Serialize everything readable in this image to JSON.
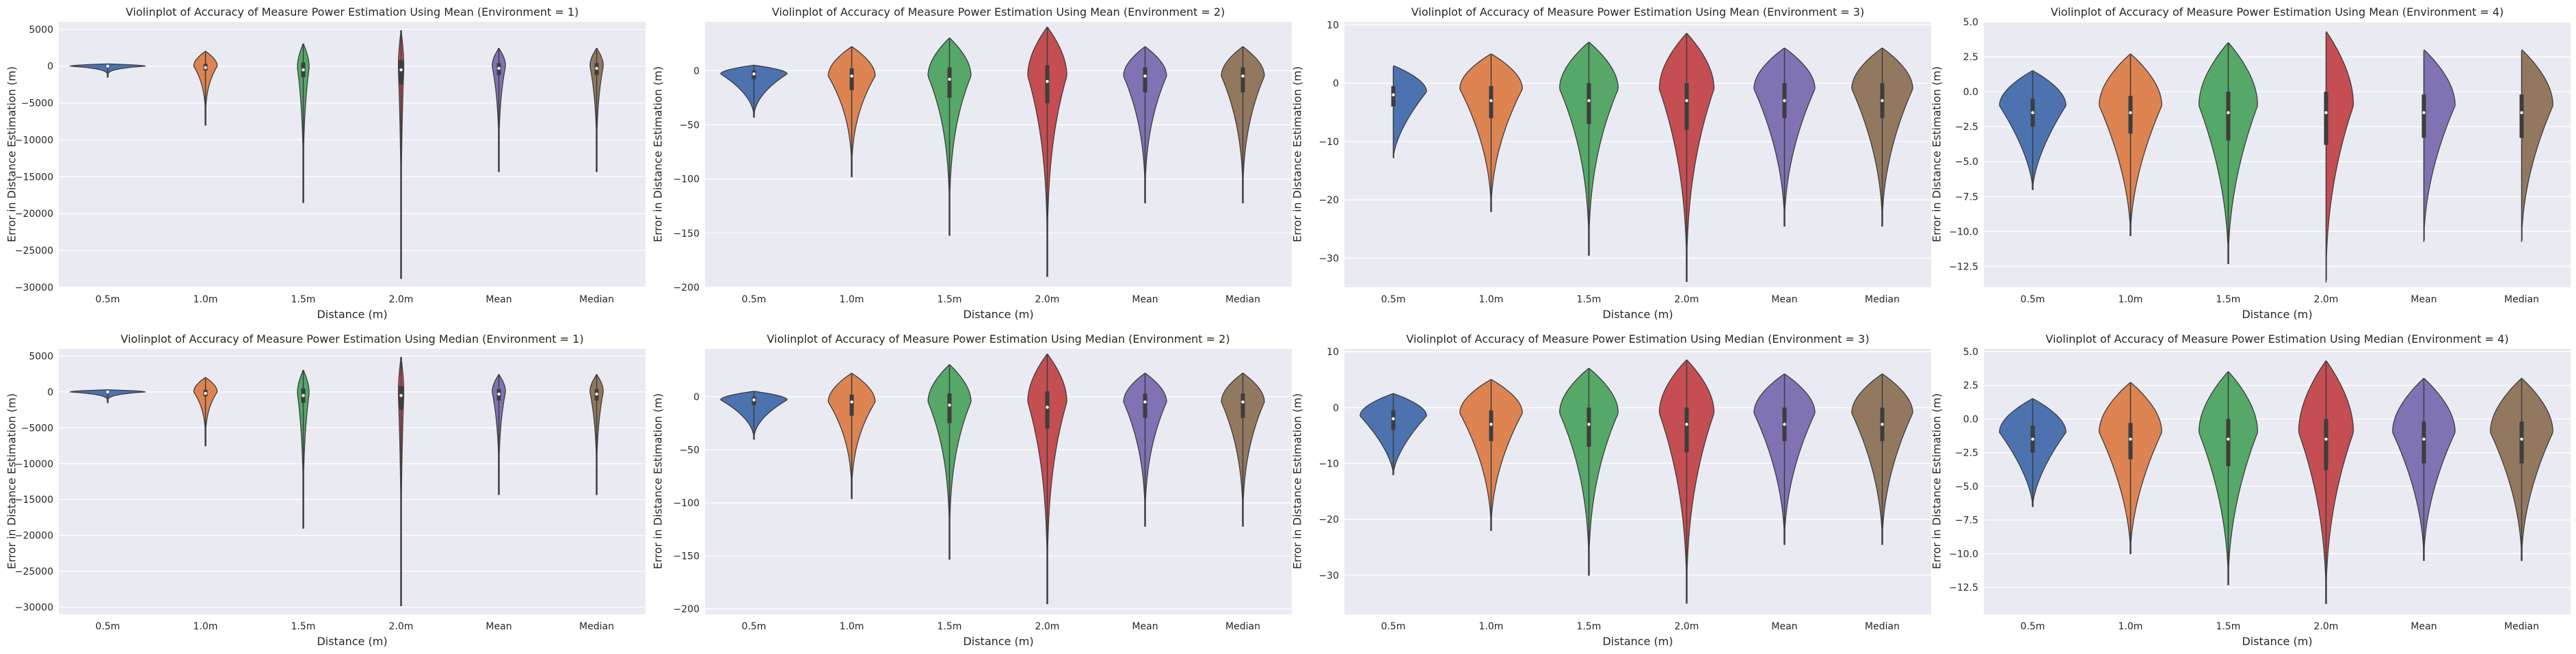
{
  "chart_data": [
    {
      "type": "violin",
      "title": "Violinplot of Accuracy of Measure Power Estimation Using Mean (Environment = 1)",
      "xlabel": "Distance (m)",
      "ylabel": "Error in Distance Estimation (m)",
      "categories": [
        "0.5m",
        "1.0m",
        "1.5m",
        "2.0m",
        "Mean",
        "Median"
      ],
      "ylim": [
        -30000,
        6000
      ],
      "yticks": [
        5000,
        0,
        -5000,
        -10000,
        -15000,
        -20000,
        -25000,
        -30000
      ],
      "ytick_labels": [
        "5000",
        "0",
        "−5000",
        "−10000",
        "−15000",
        "−20000",
        "−25000",
        "−30000"
      ],
      "colors": [
        "#4c72b0",
        "#dd8452",
        "#55a868",
        "#c44e52",
        "#8172b3",
        "#937860"
      ],
      "violins": [
        {
          "min": -1500,
          "max": 300,
          "median": 0,
          "q1": -150,
          "q3": 100,
          "center": 0,
          "width": 0.95,
          "tail": 4
        },
        {
          "min": -8000,
          "max": 2000,
          "median": -200,
          "q1": -600,
          "q3": 300,
          "center": 0,
          "width": 0.3,
          "tail": 3
        },
        {
          "min": -18500,
          "max": 3000,
          "median": -500,
          "q1": -1500,
          "q3": 500,
          "center": -200,
          "width": 0.15,
          "tail": 3
        },
        {
          "min": -28800,
          "max": 4800,
          "median": -500,
          "q1": -2500,
          "q3": 800,
          "center": -300,
          "width": 0.07,
          "tail": 3
        },
        {
          "min": -14300,
          "max": 2400,
          "median": -300,
          "q1": -1200,
          "q3": 400,
          "center": 0,
          "width": 0.17,
          "tail": 3
        },
        {
          "min": -14300,
          "max": 2400,
          "median": -300,
          "q1": -1200,
          "q3": 400,
          "center": 0,
          "width": 0.17,
          "tail": 3
        }
      ]
    },
    {
      "type": "violin",
      "title": "Violinplot of Accuracy of Measure Power Estimation Using Mean (Environment = 2)",
      "xlabel": "Distance (m)",
      "ylabel": "Error in Distance Estimation (m)",
      "categories": [
        "0.5m",
        "1.0m",
        "1.5m",
        "2.0m",
        "Mean",
        "Median"
      ],
      "ylim": [
        -200,
        45
      ],
      "yticks": [
        0,
        -50,
        -100,
        -150,
        -200
      ],
      "ytick_labels": [
        "0",
        "−50",
        "−100",
        "−150",
        "−200"
      ],
      "colors": [
        "#4c72b0",
        "#dd8452",
        "#55a868",
        "#c44e52",
        "#8172b3",
        "#937860"
      ],
      "violins": [
        {
          "min": -43,
          "max": 5,
          "median": -3,
          "q1": -8,
          "q3": 0,
          "center": -3,
          "width": 0.85,
          "tail": 2
        },
        {
          "min": -98,
          "max": 22,
          "median": -5,
          "q1": -18,
          "q3": 2,
          "center": -5,
          "width": 0.6,
          "tail": 2.5
        },
        {
          "min": -152,
          "max": 30,
          "median": -8,
          "q1": -25,
          "q3": 3,
          "center": -5,
          "width": 0.55,
          "tail": 3
        },
        {
          "min": -190,
          "max": 40,
          "median": -10,
          "q1": -30,
          "q3": 5,
          "center": -5,
          "width": 0.5,
          "tail": 3
        },
        {
          "min": -122,
          "max": 22,
          "median": -5,
          "q1": -20,
          "q3": 3,
          "center": -5,
          "width": 0.55,
          "tail": 2.5
        },
        {
          "min": -122,
          "max": 22,
          "median": -5,
          "q1": -20,
          "q3": 3,
          "center": -5,
          "width": 0.55,
          "tail": 2.5
        }
      ]
    },
    {
      "type": "violin",
      "title": "Violinplot of Accuracy of Measure Power Estimation Using Mean (Environment = 3)",
      "xlabel": "Distance (m)",
      "ylabel": "Error in Distance Estimation (m)",
      "categories": [
        "0.5m",
        "1.0m",
        "1.5m",
        "2.0m",
        "Mean",
        "Median"
      ],
      "ylim": [
        -35,
        10.5
      ],
      "yticks": [
        10,
        0,
        -10,
        -20,
        -30
      ],
      "ytick_labels": [
        "10",
        "0",
        "−10",
        "−20",
        "−30"
      ],
      "colors": [
        "#4c72b0",
        "#dd8452",
        "#55a868",
        "#c44e52",
        "#8172b3",
        "#937860"
      ],
      "violins": [
        {
          "min": -13,
          "max": 3,
          "median": -2,
          "q1": -4,
          "q3": -0.5,
          "center": -1.5,
          "width": 0.85,
          "tail": 1.6
        },
        {
          "min": -22,
          "max": 5,
          "median": -3,
          "q1": -6,
          "q3": -0.5,
          "center": -1,
          "width": 0.8,
          "tail": 2
        },
        {
          "min": -29.5,
          "max": 7,
          "median": -3,
          "q1": -7,
          "q3": 0,
          "center": -1,
          "width": 0.75,
          "tail": 2.4
        },
        {
          "min": -34,
          "max": 8.5,
          "median": -3,
          "q1": -8,
          "q3": 0,
          "center": -1,
          "width": 0.7,
          "tail": 2.4
        },
        {
          "min": -24.5,
          "max": 6,
          "median": -3,
          "q1": -6,
          "q3": 0,
          "center": -1,
          "width": 0.78,
          "tail": 2
        },
        {
          "min": -24.5,
          "max": 6,
          "median": -3,
          "q1": -6,
          "q3": 0,
          "center": -1,
          "width": 0.78,
          "tail": 2
        }
      ]
    },
    {
      "type": "violin",
      "title": "Violinplot of Accuracy of Measure Power Estimation Using Mean (Environment = 4)",
      "xlabel": "Distance (m)",
      "ylabel": "Error in Distance Estimation (m)",
      "categories": [
        "0.5m",
        "1.0m",
        "1.5m",
        "2.0m",
        "Mean",
        "Median"
      ],
      "ylim": [
        -14,
        5
      ],
      "yticks": [
        5.0,
        2.5,
        0.0,
        -2.5,
        -5.0,
        -7.5,
        -10.0,
        -12.5
      ],
      "ytick_labels": [
        "5.0",
        "2.5",
        "0.0",
        "−2.5",
        "−5.0",
        "−7.5",
        "−10.0",
        "−12.5"
      ],
      "colors": [
        "#4c72b0",
        "#dd8452",
        "#55a868",
        "#c44e52",
        "#8172b3",
        "#937860"
      ],
      "violins": [
        {
          "min": -7,
          "max": 1.5,
          "median": -1.5,
          "q1": -2.5,
          "q3": -0.5,
          "center": -1,
          "width": 0.85,
          "tail": 1.6
        },
        {
          "min": -10.3,
          "max": 2.7,
          "median": -1.5,
          "q1": -3,
          "q3": -0.3,
          "center": -1,
          "width": 0.8,
          "tail": 1.8
        },
        {
          "min": -12.3,
          "max": 3.5,
          "median": -1.5,
          "q1": -3.5,
          "q3": 0,
          "center": -1,
          "width": 0.75,
          "tail": 2
        },
        {
          "min": -13.7,
          "max": 4.3,
          "median": -1.5,
          "q1": -3.8,
          "q3": 0,
          "center": -1,
          "width": 0.7,
          "tail": 2.2
        },
        {
          "min": -10.8,
          "max": 3,
          "median": -1.5,
          "q1": -3.3,
          "q3": -0.2,
          "center": -1,
          "width": 0.8,
          "tail": 1.9
        },
        {
          "min": -10.8,
          "max": 3,
          "median": -1.5,
          "q1": -3.3,
          "q3": -0.2,
          "center": -1,
          "width": 0.8,
          "tail": 1.9
        }
      ]
    },
    {
      "type": "violin",
      "title": "Violinplot of Accuracy of Measure Power Estimation Using Median (Environment = 1)",
      "xlabel": "Distance (m)",
      "ylabel": "Error in Distance Estimation (m)",
      "categories": [
        "0.5m",
        "1.0m",
        "1.5m",
        "2.0m",
        "Mean",
        "Median"
      ],
      "ylim": [
        -31000,
        6000
      ],
      "yticks": [
        5000,
        0,
        -5000,
        -10000,
        -15000,
        -20000,
        -25000,
        -30000
      ],
      "ytick_labels": [
        "5000",
        "0",
        "−5000",
        "−10000",
        "−15000",
        "−20000",
        "−25000",
        "−30000"
      ],
      "colors": [
        "#4c72b0",
        "#dd8452",
        "#55a868",
        "#c44e52",
        "#8172b3",
        "#937860"
      ],
      "violins": [
        {
          "min": -1500,
          "max": 300,
          "median": 0,
          "q1": -150,
          "q3": 100,
          "center": 0,
          "width": 0.95,
          "tail": 4
        },
        {
          "min": -7500,
          "max": 2000,
          "median": -200,
          "q1": -600,
          "q3": 300,
          "center": 0,
          "width": 0.3,
          "tail": 3
        },
        {
          "min": -19000,
          "max": 3000,
          "median": -500,
          "q1": -1500,
          "q3": 500,
          "center": -200,
          "width": 0.15,
          "tail": 3
        },
        {
          "min": -29800,
          "max": 4800,
          "median": -500,
          "q1": -2500,
          "q3": 800,
          "center": -300,
          "width": 0.07,
          "tail": 3
        },
        {
          "min": -14300,
          "max": 2400,
          "median": -300,
          "q1": -1200,
          "q3": 400,
          "center": 0,
          "width": 0.17,
          "tail": 3
        },
        {
          "min": -14300,
          "max": 2400,
          "median": -300,
          "q1": -1200,
          "q3": 400,
          "center": 0,
          "width": 0.17,
          "tail": 3
        }
      ]
    },
    {
      "type": "violin",
      "title": "Violinplot of Accuracy of Measure Power Estimation Using Median (Environment = 2)",
      "xlabel": "Distance (m)",
      "ylabel": "Error in Distance Estimation (m)",
      "categories": [
        "0.5m",
        "1.0m",
        "1.5m",
        "2.0m",
        "Mean",
        "Median"
      ],
      "ylim": [
        -205,
        45
      ],
      "yticks": [
        0,
        -50,
        -100,
        -150,
        -200
      ],
      "ytick_labels": [
        "0",
        "−50",
        "−100",
        "−150",
        "−200"
      ],
      "colors": [
        "#4c72b0",
        "#dd8452",
        "#55a868",
        "#c44e52",
        "#8172b3",
        "#937860"
      ],
      "violins": [
        {
          "min": -40,
          "max": 5,
          "median": -3,
          "q1": -8,
          "q3": 0,
          "center": -3,
          "width": 0.85,
          "tail": 2
        },
        {
          "min": -96,
          "max": 22,
          "median": -5,
          "q1": -18,
          "q3": 2,
          "center": -5,
          "width": 0.6,
          "tail": 2.5
        },
        {
          "min": -153,
          "max": 30,
          "median": -8,
          "q1": -25,
          "q3": 3,
          "center": -5,
          "width": 0.55,
          "tail": 3
        },
        {
          "min": -195,
          "max": 40,
          "median": -10,
          "q1": -30,
          "q3": 5,
          "center": -5,
          "width": 0.5,
          "tail": 3
        },
        {
          "min": -122,
          "max": 22,
          "median": -5,
          "q1": -20,
          "q3": 3,
          "center": -5,
          "width": 0.55,
          "tail": 2.5
        },
        {
          "min": -122,
          "max": 22,
          "median": -5,
          "q1": -20,
          "q3": 3,
          "center": -5,
          "width": 0.55,
          "tail": 2.5
        }
      ]
    },
    {
      "type": "violin",
      "title": "Violinplot of Accuracy of Measure Power Estimation Using Median (Environment = 3)",
      "xlabel": "Distance (m)",
      "ylabel": "Error in Distance Estimation (m)",
      "categories": [
        "0.5m",
        "1.0m",
        "1.5m",
        "2.0m",
        "Mean",
        "Median"
      ],
      "ylim": [
        -37,
        10.5
      ],
      "yticks": [
        10,
        0,
        -10,
        -20,
        -30
      ],
      "ytick_labels": [
        "10",
        "0",
        "−10",
        "−20",
        "−30"
      ],
      "colors": [
        "#4c72b0",
        "#dd8452",
        "#55a868",
        "#c44e52",
        "#8172b3",
        "#937860"
      ],
      "violins": [
        {
          "min": -12,
          "max": 2.5,
          "median": -2,
          "q1": -4,
          "q3": -0.5,
          "center": -1.5,
          "width": 0.85,
          "tail": 1.6
        },
        {
          "min": -22,
          "max": 5,
          "median": -3,
          "q1": -6,
          "q3": -0.5,
          "center": -1,
          "width": 0.8,
          "tail": 2
        },
        {
          "min": -30,
          "max": 7,
          "median": -3,
          "q1": -7,
          "q3": 0,
          "center": -1,
          "width": 0.75,
          "tail": 2.4
        },
        {
          "min": -35,
          "max": 8.5,
          "median": -3,
          "q1": -8,
          "q3": 0,
          "center": -1,
          "width": 0.7,
          "tail": 2.4
        },
        {
          "min": -24.5,
          "max": 6,
          "median": -3,
          "q1": -6,
          "q3": 0,
          "center": -1,
          "width": 0.78,
          "tail": 2
        },
        {
          "min": -24.5,
          "max": 6,
          "median": -3,
          "q1": -6,
          "q3": 0,
          "center": -1,
          "width": 0.78,
          "tail": 2
        }
      ]
    },
    {
      "type": "violin",
      "title": "Violinplot of Accuracy of Measure Power Estimation Using Median (Environment = 4)",
      "xlabel": "Distance (m)",
      "ylabel": "Error in Distance Estimation (m)",
      "categories": [
        "0.5m",
        "1.0m",
        "1.5m",
        "2.0m",
        "Mean",
        "Median"
      ],
      "ylim": [
        -14.5,
        5.2
      ],
      "yticks": [
        5.0,
        2.5,
        0.0,
        -2.5,
        -5.0,
        -7.5,
        -10.0,
        -12.5
      ],
      "ytick_labels": [
        "5.0",
        "2.5",
        "0.0",
        "−2.5",
        "−5.0",
        "−7.5",
        "−10.0",
        "−12.5"
      ],
      "colors": [
        "#4c72b0",
        "#dd8452",
        "#55a868",
        "#c44e52",
        "#8172b3",
        "#937860"
      ],
      "violins": [
        {
          "min": -6.5,
          "max": 1.5,
          "median": -1.5,
          "q1": -2.5,
          "q3": -0.5,
          "center": -1,
          "width": 0.85,
          "tail": 1.6
        },
        {
          "min": -10,
          "max": 2.7,
          "median": -1.5,
          "q1": -3,
          "q3": -0.3,
          "center": -1,
          "width": 0.8,
          "tail": 1.8
        },
        {
          "min": -12.3,
          "max": 3.5,
          "median": -1.5,
          "q1": -3.5,
          "q3": 0,
          "center": -1,
          "width": 0.75,
          "tail": 2
        },
        {
          "min": -13.7,
          "max": 4.3,
          "median": -1.5,
          "q1": -3.8,
          "q3": 0,
          "center": -1,
          "width": 0.7,
          "tail": 2.2
        },
        {
          "min": -10.5,
          "max": 3,
          "median": -1.5,
          "q1": -3.3,
          "q3": -0.2,
          "center": -1,
          "width": 0.8,
          "tail": 1.9
        },
        {
          "min": -10.5,
          "max": 3,
          "median": -1.5,
          "q1": -3.3,
          "q3": -0.2,
          "center": -1,
          "width": 0.8,
          "tail": 1.9
        }
      ]
    }
  ]
}
